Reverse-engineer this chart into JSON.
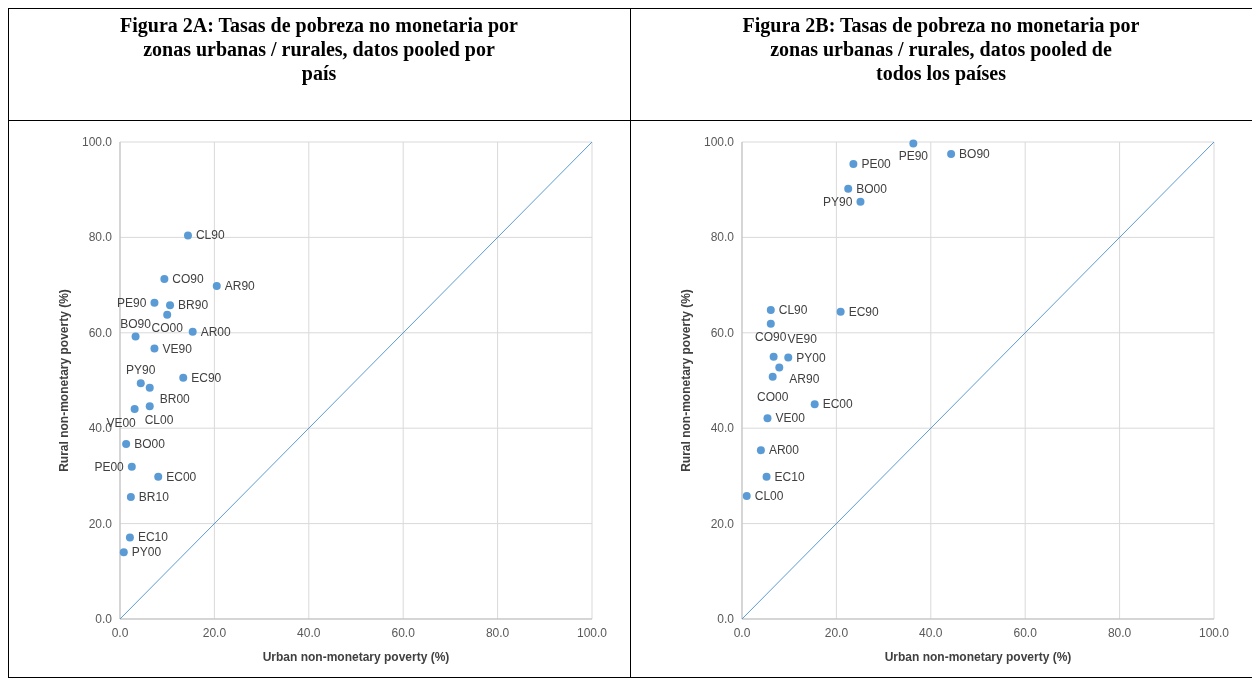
{
  "chart_data": [
    {
      "type": "scatter",
      "title": "Figura 2A: Tasas de pobreza no monetaria por zonas urbanas / rurales, datos pooled por país",
      "xlabel": "Urban non-monetary poverty (%)",
      "ylabel": "Rural non-monetary poverty (%)",
      "xlim": [
        0,
        100
      ],
      "ylim": [
        0,
        100
      ],
      "xticks": [
        {
          "value": 0,
          "label": "0.0"
        },
        {
          "value": 20,
          "label": "20.0"
        },
        {
          "value": 40,
          "label": "40.0"
        },
        {
          "value": 60,
          "label": "60.0"
        },
        {
          "value": 80,
          "label": "80.0"
        },
        {
          "value": 100,
          "label": "100.0"
        }
      ],
      "yticks": [
        {
          "value": 0,
          "label": "0.0"
        },
        {
          "value": 20,
          "label": "20.0"
        },
        {
          "value": 40,
          "label": "40.0"
        },
        {
          "value": 60,
          "label": "60.0"
        },
        {
          "value": 80,
          "label": "80.0"
        },
        {
          "value": 100,
          "label": "100.0"
        }
      ],
      "grid": true,
      "marker": "circle",
      "series": [
        {
          "color": "#5b9bd5",
          "x": [
            14.4,
            9.4,
            20.5,
            7.3,
            10.6,
            10.0,
            3.3,
            15.4,
            7.3,
            13.4,
            4.4,
            6.3,
            3.1,
            6.3,
            1.3,
            2.5,
            8.1,
            2.3,
            2.1,
            0.8
          ],
          "values": [
            80.4,
            71.3,
            69.8,
            66.3,
            65.8,
            63.8,
            59.2,
            60.2,
            56.7,
            50.6,
            49.4,
            48.5,
            44.0,
            44.6,
            36.7,
            31.9,
            29.8,
            25.6,
            17.1,
            14.0
          ]
        },
        {
          "type": "line",
          "color": "#5b9bd5",
          "x": [
            0,
            100
          ],
          "values": [
            0,
            100
          ],
          "marker": "none"
        }
      ],
      "annotations": [
        {
          "text": "CL90",
          "x": 14.4,
          "y": 80.4
        },
        {
          "text": "CO90",
          "x": 9.4,
          "y": 71.3
        },
        {
          "text": "AR90",
          "x": 20.5,
          "y": 69.8
        },
        {
          "text": "PE90",
          "x": 7.3,
          "y": 66.3
        },
        {
          "text": "BR90",
          "x": 10.6,
          "y": 65.8
        },
        {
          "text": "CO00",
          "x": 10.0,
          "y": 63.8
        },
        {
          "text": "BO90",
          "x": 3.3,
          "y": 59.2
        },
        {
          "text": "AR00",
          "x": 15.4,
          "y": 60.2
        },
        {
          "text": "VE90",
          "x": 7.3,
          "y": 56.7
        },
        {
          "text": "EC90",
          "x": 13.4,
          "y": 50.6
        },
        {
          "text": "PY90",
          "x": 4.4,
          "y": 49.4
        },
        {
          "text": "BR00",
          "x": 6.3,
          "y": 48.5
        },
        {
          "text": "CL00",
          "x": 3.1,
          "y": 44.0
        },
        {
          "text": "VE00",
          "x": 6.3,
          "y": 44.6
        },
        {
          "text": "BO00",
          "x": 1.3,
          "y": 36.7
        },
        {
          "text": "PE00",
          "x": 2.5,
          "y": 31.9
        },
        {
          "text": "EC00",
          "x": 8.1,
          "y": 29.8
        },
        {
          "text": "BR10",
          "x": 2.3,
          "y": 25.6
        },
        {
          "text": "EC10",
          "x": 2.1,
          "y": 17.1
        },
        {
          "text": "PY00",
          "x": 0.8,
          "y": 14.0
        }
      ]
    },
    {
      "type": "scatter",
      "title": "Figura 2B: Tasas de pobreza no monetaria por zonas urbanas / rurales, datos pooled de todos los países",
      "xlabel": "Urban non-monetary poverty (%)",
      "ylabel": "Rural non-monetary poverty (%)",
      "xlim": [
        0,
        100
      ],
      "ylim": [
        0,
        100
      ],
      "xticks": [
        {
          "value": 0,
          "label": "0.0"
        },
        {
          "value": 20,
          "label": "20.0"
        },
        {
          "value": 40,
          "label": "40.0"
        },
        {
          "value": 60,
          "label": "60.0"
        },
        {
          "value": 80,
          "label": "80.0"
        },
        {
          "value": 100,
          "label": "100.0"
        }
      ],
      "yticks": [
        {
          "value": 0,
          "label": "0.0"
        },
        {
          "value": 20,
          "label": "20.0"
        },
        {
          "value": 40,
          "label": "40.0"
        },
        {
          "value": 60,
          "label": "60.0"
        },
        {
          "value": 80,
          "label": "80.0"
        },
        {
          "value": 100,
          "label": "100.0"
        }
      ],
      "grid": true,
      "marker": "circle",
      "series": [
        {
          "color": "#5b9bd5",
          "x": [
            36.3,
            44.3,
            23.6,
            22.5,
            25.1,
            6.1,
            20.9,
            6.1,
            6.7,
            9.8,
            7.9,
            6.5,
            15.4,
            5.4,
            4.0,
            5.2,
            1.0
          ],
          "values": [
            99.7,
            97.5,
            95.4,
            90.2,
            87.5,
            64.8,
            64.4,
            61.9,
            55.0,
            54.8,
            52.7,
            50.8,
            45.0,
            42.1,
            35.4,
            29.8,
            25.8
          ]
        },
        {
          "type": "line",
          "color": "#5b9bd5",
          "x": [
            0,
            100
          ],
          "values": [
            0,
            100
          ],
          "marker": "none"
        }
      ],
      "annotations": [
        {
          "text": "PE90",
          "x": 36.3,
          "y": 99.7
        },
        {
          "text": "BO90",
          "x": 44.3,
          "y": 97.5
        },
        {
          "text": "PE00",
          "x": 23.6,
          "y": 95.4
        },
        {
          "text": "BO00",
          "x": 22.5,
          "y": 90.2
        },
        {
          "text": "PY90",
          "x": 25.1,
          "y": 87.5
        },
        {
          "text": "CL90",
          "x": 6.1,
          "y": 64.8
        },
        {
          "text": "EC90",
          "x": 20.9,
          "y": 64.4
        },
        {
          "text": "CO90",
          "x": 6.1,
          "y": 61.9
        },
        {
          "text": "VE90",
          "x": 6.7,
          "y": 55.0
        },
        {
          "text": "PY00",
          "x": 9.8,
          "y": 54.8
        },
        {
          "text": "AR90",
          "x": 7.9,
          "y": 52.7
        },
        {
          "text": "CO00",
          "x": 6.5,
          "y": 50.8
        },
        {
          "text": "EC00",
          "x": 15.4,
          "y": 45.0
        },
        {
          "text": "VE00",
          "x": 5.4,
          "y": 42.1
        },
        {
          "text": "AR00",
          "x": 4.0,
          "y": 35.4
        },
        {
          "text": "EC10",
          "x": 5.2,
          "y": 29.8
        },
        {
          "text": "CL00",
          "x": 1.0,
          "y": 25.8
        }
      ]
    }
  ]
}
